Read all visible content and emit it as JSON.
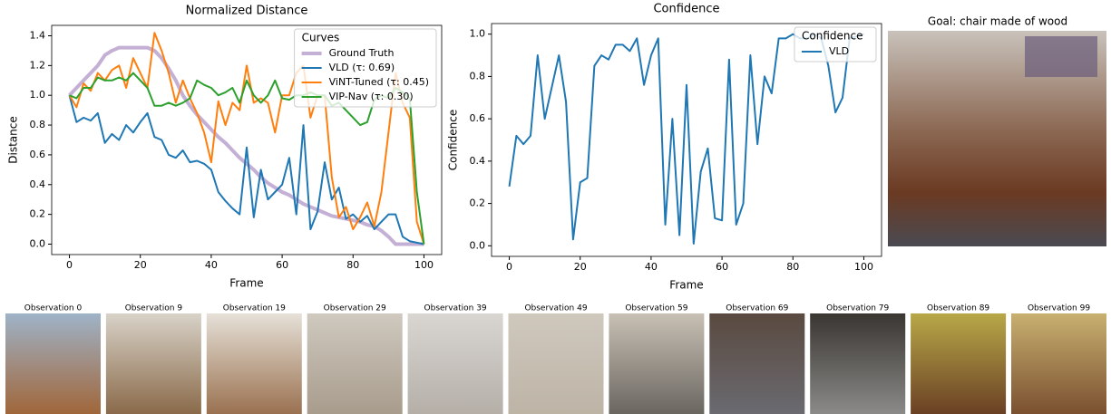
{
  "chart_data": [
    {
      "type": "line",
      "title": "Normalized Distance",
      "xlabel": "Frame",
      "ylabel": "Distance",
      "x": [
        0,
        2,
        4,
        6,
        8,
        10,
        12,
        14,
        16,
        18,
        20,
        22,
        24,
        26,
        28,
        30,
        32,
        34,
        36,
        38,
        40,
        42,
        44,
        46,
        48,
        50,
        52,
        54,
        56,
        58,
        60,
        62,
        64,
        66,
        68,
        70,
        72,
        74,
        76,
        78,
        80,
        82,
        84,
        86,
        88,
        90,
        92,
        94,
        96,
        98,
        100
      ],
      "series": [
        {
          "name": "Ground Truth",
          "color": "#c5b0d5",
          "line_width": 4,
          "values": [
            1.0,
            1.05,
            1.1,
            1.15,
            1.2,
            1.27,
            1.3,
            1.32,
            1.32,
            1.32,
            1.32,
            1.32,
            1.3,
            1.25,
            1.18,
            1.1,
            1.0,
            0.93,
            0.87,
            0.82,
            0.77,
            0.72,
            0.68,
            0.63,
            0.58,
            0.54,
            0.5,
            0.45,
            0.41,
            0.38,
            0.35,
            0.33,
            0.3,
            0.27,
            0.25,
            0.23,
            0.21,
            0.19,
            0.18,
            0.17,
            0.16,
            0.15,
            0.13,
            0.12,
            0.09,
            0.05,
            0.0,
            0.0,
            0.0,
            0.0,
            0.0
          ]
        },
        {
          "name": "VLD (τ: 0.69)",
          "color": "#1f77b4",
          "line_width": 2,
          "values": [
            1.0,
            0.82,
            0.85,
            0.83,
            0.88,
            0.68,
            0.74,
            0.7,
            0.8,
            0.75,
            0.82,
            0.88,
            0.72,
            0.7,
            0.6,
            0.58,
            0.63,
            0.55,
            0.56,
            0.54,
            0.5,
            0.35,
            0.29,
            0.24,
            0.2,
            0.65,
            0.18,
            0.5,
            0.3,
            0.35,
            0.4,
            0.58,
            0.2,
            0.8,
            0.1,
            0.22,
            0.55,
            0.3,
            0.38,
            0.17,
            0.2,
            0.15,
            0.19,
            0.1,
            0.15,
            0.2,
            0.2,
            0.05,
            0.02,
            0.01,
            0.0
          ]
        },
        {
          "name": "ViNT-Tuned (τ: 0.45)",
          "color": "#ff7f0e",
          "line_width": 2,
          "values": [
            1.0,
            0.92,
            1.08,
            1.03,
            1.15,
            1.1,
            1.17,
            1.2,
            1.05,
            1.25,
            1.15,
            1.05,
            1.42,
            1.3,
            1.15,
            0.95,
            1.1,
            0.98,
            0.88,
            0.75,
            0.55,
            0.96,
            0.8,
            0.95,
            0.9,
            1.2,
            0.95,
            0.98,
            0.95,
            0.75,
            1.0,
            1.0,
            1.15,
            1.2,
            0.85,
            1.0,
            1.0,
            0.45,
            0.18,
            0.25,
            0.1,
            0.18,
            0.28,
            0.12,
            0.35,
            0.75,
            1.15,
            0.95,
            0.85,
            0.15,
            0.0
          ]
        },
        {
          "name": "VIP-Nav (τ: 0.30)",
          "color": "#2ca02c",
          "line_width": 2,
          "values": [
            1.0,
            0.98,
            1.05,
            1.05,
            1.12,
            1.1,
            1.1,
            1.12,
            1.1,
            1.15,
            1.1,
            1.05,
            0.93,
            0.93,
            0.95,
            0.93,
            0.95,
            0.98,
            1.1,
            1.07,
            1.05,
            1.0,
            1.02,
            1.05,
            0.95,
            1.1,
            1.0,
            0.95,
            1.0,
            1.1,
            0.98,
            0.97,
            1.0,
            1.0,
            1.02,
            1.0,
            1.0,
            0.93,
            0.95,
            0.9,
            0.85,
            0.8,
            0.82,
            0.97,
            1.0,
            0.98,
            1.05,
            1.02,
            0.98,
            0.35,
            0.0
          ]
        }
      ],
      "xlim": [
        -5,
        105
      ],
      "xticks": [
        0,
        20,
        40,
        60,
        80,
        100
      ],
      "ylim": [
        -0.07,
        1.47
      ],
      "yticks": [
        {
          "value": 0,
          "label": "0.0"
        },
        0.2,
        0.4,
        0.6,
        0.8,
        {
          "value": 1,
          "label": "1.0"
        },
        1.2,
        1.4
      ],
      "legend_title": "Curves",
      "legend": "upper right"
    },
    {
      "type": "line",
      "title": "Confidence",
      "xlabel": "Frame",
      "ylabel": "Confidence",
      "x": [
        0,
        2,
        4,
        6,
        8,
        10,
        12,
        14,
        16,
        18,
        20,
        22,
        24,
        26,
        28,
        30,
        32,
        34,
        36,
        38,
        40,
        42,
        44,
        46,
        48,
        50,
        52,
        54,
        56,
        58,
        60,
        62,
        64,
        66,
        68,
        70,
        72,
        74,
        76,
        78,
        80,
        82,
        84,
        86,
        88,
        90,
        92,
        94,
        96,
        98,
        100
      ],
      "series": [
        {
          "name": "VLD",
          "color": "#1f77b4",
          "line_width": 2,
          "values": [
            0.28,
            0.52,
            0.48,
            0.52,
            0.9,
            0.6,
            0.75,
            0.9,
            0.68,
            0.03,
            0.3,
            0.32,
            0.85,
            0.9,
            0.88,
            0.95,
            0.95,
            0.92,
            0.98,
            0.76,
            0.9,
            0.98,
            0.1,
            0.6,
            0.05,
            0.76,
            0.01,
            0.35,
            0.46,
            0.13,
            0.12,
            0.88,
            0.1,
            0.2,
            0.9,
            0.48,
            0.8,
            0.72,
            0.98,
            0.98,
            1.0,
            0.98,
            0.98,
            1.0,
            0.98,
            0.85,
            0.63,
            0.7,
            0.98,
            0.99,
            1.0
          ]
        }
      ],
      "xlim": [
        -5,
        105
      ],
      "xticks": [
        0,
        20,
        40,
        60,
        80,
        100
      ],
      "ylim": [
        -0.05,
        1.05
      ],
      "yticks": [
        {
          "value": 0,
          "label": "0.0"
        },
        0.2,
        0.4,
        0.6,
        0.8,
        {
          "value": 1,
          "label": "1.0"
        }
      ],
      "legend_title": "Confidence",
      "legend": "upper right"
    }
  ],
  "goal": {
    "title": "Goal: chair made of wood"
  },
  "observations": [
    "Observation 0",
    "Observation 9",
    "Observation 19",
    "Observation 29",
    "Observation 39",
    "Observation 49",
    "Observation 59",
    "Observation 69",
    "Observation 79",
    "Observation 89",
    "Observation 99"
  ]
}
